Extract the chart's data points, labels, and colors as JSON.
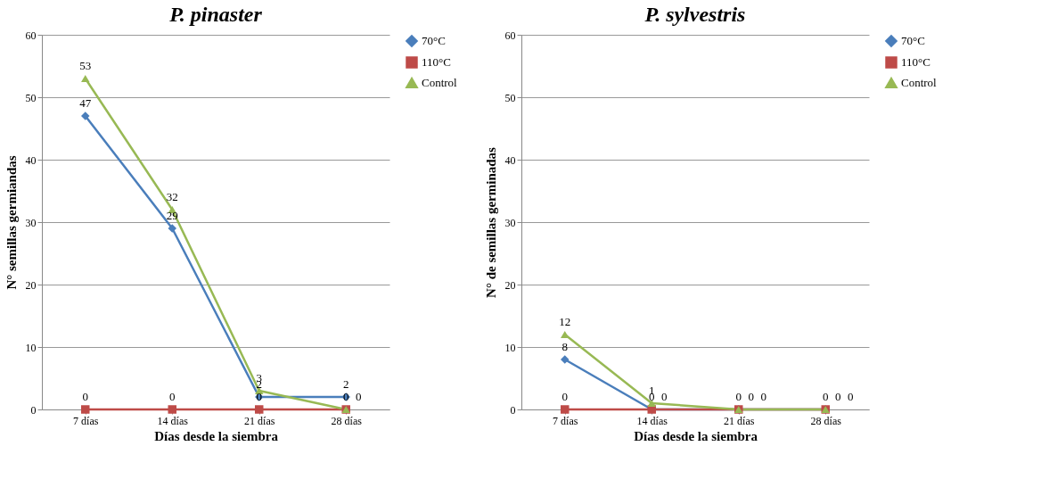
{
  "chart_data": [
    {
      "type": "line",
      "title": "P. pinaster",
      "xlabel": "Días desde la siembra",
      "ylabel": "N° semillas germiandas",
      "categories": [
        "7 días",
        "14 días",
        "21 días",
        "28 días"
      ],
      "ylim": [
        0,
        60
      ],
      "yticks": [
        0,
        10,
        20,
        30,
        40,
        50,
        60
      ],
      "grid": "y",
      "legend": "right",
      "data_labels": true,
      "series": [
        {
          "name": "70°C",
          "color": "#4a7ebb",
          "marker": "diamond",
          "values": [
            47,
            29,
            2,
            2
          ]
        },
        {
          "name": "110°C",
          "color": "#be4b48",
          "marker": "square",
          "values": [
            0,
            0,
            0,
            0
          ]
        },
        {
          "name": "Control",
          "color": "#98b954",
          "marker": "triangle",
          "values": [
            53,
            32,
            3,
            0
          ]
        }
      ]
    },
    {
      "type": "line",
      "title": "P. sylvestris",
      "xlabel": "Días desde la siembra",
      "ylabel": "N° de semillas germinadas",
      "categories": [
        "7 días",
        "14 días",
        "21 días",
        "28 días"
      ],
      "ylim": [
        0,
        60
      ],
      "yticks": [
        0,
        10,
        20,
        30,
        40,
        50,
        60
      ],
      "grid": "y",
      "legend": "right",
      "data_labels": true,
      "series": [
        {
          "name": "70°C",
          "color": "#4a7ebb",
          "marker": "diamond",
          "values": [
            8,
            0,
            0,
            0
          ]
        },
        {
          "name": "110°C",
          "color": "#be4b48",
          "marker": "square",
          "values": [
            0,
            0,
            0,
            0
          ]
        },
        {
          "name": "Control",
          "color": "#98b954",
          "marker": "triangle",
          "values": [
            12,
            1,
            0,
            0
          ]
        }
      ]
    }
  ]
}
